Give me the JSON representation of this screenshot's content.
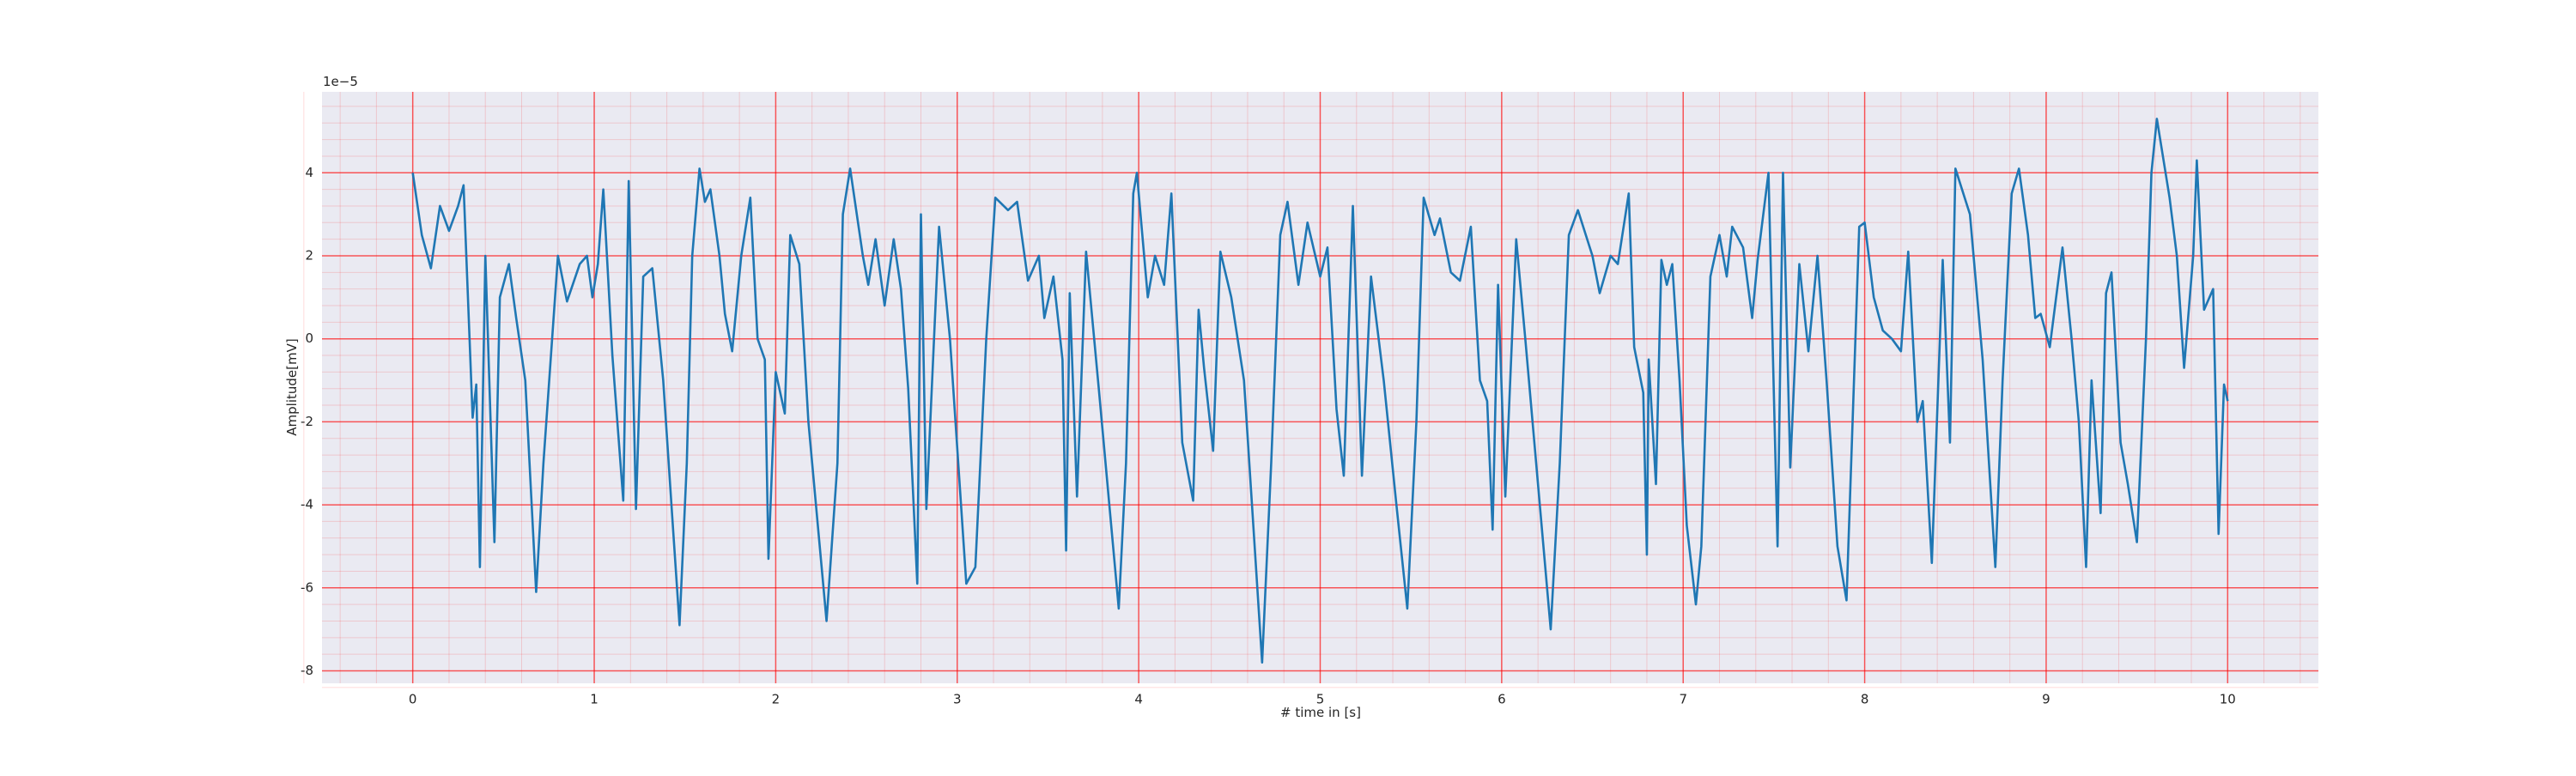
{
  "chart_data": {
    "type": "line",
    "x_label": "# time in [s]",
    "y_label": "Amplitude[mV]",
    "y_offset_text": "1e−5",
    "color": "#1f77b4",
    "background": "#eaeaf2",
    "grid": true,
    "grid_color": "#ff0000",
    "minor_grid": true,
    "xlim": [
      -0.5,
      10.5
    ],
    "xticks": [
      0,
      1,
      2,
      3,
      4,
      5,
      6,
      7,
      8,
      9,
      10
    ],
    "ylim": [
      -8.3,
      5.95
    ],
    "yticks": [
      -8,
      -6,
      -4,
      -2,
      0,
      2,
      4
    ],
    "x": [
      0,
      0.05,
      0.1,
      0.15,
      0.2,
      0.25,
      0.28,
      0.33,
      0.35,
      0.37,
      0.4,
      0.45,
      0.48,
      0.53,
      0.57,
      0.62,
      0.68,
      0.72,
      0.8,
      0.85,
      0.92,
      0.96,
      0.99,
      1.02,
      1.05,
      1.1,
      1.16,
      1.19,
      1.23,
      1.27,
      1.32,
      1.38,
      1.43,
      1.47,
      1.51,
      1.54,
      1.58,
      1.61,
      1.64,
      1.69,
      1.72,
      1.76,
      1.81,
      1.86,
      1.9,
      1.94,
      1.96,
      2.0,
      2.05,
      2.08,
      2.13,
      2.18,
      2.28,
      2.34,
      2.37,
      2.41,
      2.48,
      2.51,
      2.55,
      2.6,
      2.65,
      2.69,
      2.73,
      2.78,
      2.8,
      2.83,
      2.9,
      2.96,
      3.05,
      3.1,
      3.16,
      3.21,
      3.28,
      3.33,
      3.39,
      3.45,
      3.48,
      3.53,
      3.58,
      3.6,
      3.62,
      3.66,
      3.71,
      3.78,
      3.89,
      3.93,
      3.97,
      3.99,
      4.05,
      4.09,
      4.14,
      4.18,
      4.24,
      4.3,
      4.33,
      4.36,
      4.41,
      4.45,
      4.51,
      4.58,
      4.68,
      4.73,
      4.78,
      4.82,
      4.88,
      4.93,
      5.0,
      5.04,
      5.09,
      5.13,
      5.18,
      5.23,
      5.28,
      5.35,
      5.42,
      5.48,
      5.53,
      5.57,
      5.63,
      5.66,
      5.72,
      5.77,
      5.83,
      5.88,
      5.92,
      5.95,
      5.98,
      6.02,
      6.08,
      6.13,
      6.27,
      6.32,
      6.37,
      6.42,
      6.5,
      6.54,
      6.6,
      6.64,
      6.7,
      6.73,
      6.78,
      6.8,
      6.81,
      6.85,
      6.88,
      6.91,
      6.94,
      6.98,
      7.02,
      7.07,
      7.1,
      7.15,
      7.2,
      7.24,
      7.27,
      7.33,
      7.38,
      7.41,
      7.47,
      7.52,
      7.55,
      7.59,
      7.64,
      7.69,
      7.74,
      7.79,
      7.85,
      7.9,
      7.97,
      8.0,
      8.05,
      8.1,
      8.15,
      8.2,
      8.24,
      8.29,
      8.32,
      8.37,
      8.43,
      8.47,
      8.5,
      8.58,
      8.65,
      8.72,
      8.76,
      8.81,
      8.85,
      8.9,
      8.94,
      8.97,
      9.02,
      9.09,
      9.14,
      9.18,
      9.22,
      9.25,
      9.3,
      9.33,
      9.36,
      9.41,
      9.45,
      9.5,
      9.55,
      9.58,
      9.61,
      9.68,
      9.72,
      9.76,
      9.81,
      9.83,
      9.87,
      9.92,
      9.95,
      9.98,
      10.0
    ],
    "values": [
      4.0,
      2.5,
      1.7,
      3.2,
      2.6,
      3.2,
      3.7,
      -1.9,
      -1.1,
      -5.5,
      2.0,
      -4.9,
      1.0,
      1.8,
      0.5,
      -1.0,
      -6.1,
      -3.0,
      2.0,
      0.9,
      1.8,
      2.0,
      1.0,
      1.8,
      3.6,
      -0.4,
      -3.9,
      3.8,
      -4.1,
      1.5,
      1.7,
      -1.0,
      -4.3,
      -6.9,
      -3.0,
      2.0,
      4.1,
      3.3,
      3.6,
      2.0,
      0.6,
      -0.3,
      2.0,
      3.4,
      0.0,
      -0.5,
      -5.3,
      -0.8,
      -1.8,
      2.5,
      1.8,
      -2.0,
      -6.8,
      -3.0,
      3.0,
      4.1,
      2.0,
      1.3,
      2.4,
      0.8,
      2.4,
      1.2,
      -1.2,
      -5.9,
      3.0,
      -4.1,
      2.7,
      0.0,
      -5.9,
      -5.5,
      0.0,
      3.4,
      3.1,
      3.3,
      1.4,
      2.0,
      0.5,
      1.5,
      -0.5,
      -5.1,
      1.1,
      -3.8,
      2.1,
      -1.2,
      -6.5,
      -3.0,
      3.5,
      4.0,
      1.0,
      2.0,
      1.3,
      3.5,
      -2.5,
      -3.9,
      0.7,
      -0.7,
      -2.7,
      2.1,
      1.0,
      -1.0,
      -7.8,
      -3.0,
      2.5,
      3.3,
      1.3,
      2.8,
      1.5,
      2.2,
      -1.7,
      -3.3,
      3.2,
      -3.3,
      1.5,
      -1.0,
      -4.0,
      -6.5,
      -2.0,
      3.4,
      2.5,
      2.9,
      1.6,
      1.4,
      2.7,
      -1.0,
      -1.5,
      -4.6,
      1.3,
      -3.8,
      2.4,
      0.0,
      -7.0,
      -3.0,
      2.5,
      3.1,
      2.0,
      1.1,
      2.0,
      1.8,
      3.5,
      -0.2,
      -1.3,
      -5.2,
      -0.5,
      -3.5,
      1.9,
      1.3,
      1.8,
      -1.0,
      -4.5,
      -6.4,
      -5.0,
      1.5,
      2.5,
      1.5,
      2.7,
      2.2,
      0.5,
      1.9,
      4.0,
      -5.0,
      4.0,
      -3.1,
      1.8,
      -0.3,
      2.0,
      -1.0,
      -5.0,
      -6.3,
      2.7,
      2.8,
      1.0,
      0.2,
      0.0,
      -0.3,
      2.1,
      -2.0,
      -1.5,
      -5.4,
      1.9,
      -2.5,
      4.1,
      3.0,
      -0.5,
      -5.5,
      -1.0,
      3.5,
      4.1,
      2.5,
      0.5,
      0.6,
      -0.2,
      2.2,
      0.0,
      -2.0,
      -5.5,
      -1.0,
      -4.2,
      1.1,
      1.6,
      -2.5,
      -3.5,
      -4.9,
      0.0,
      4.0,
      5.3,
      3.4,
      2.0,
      -0.7,
      2.0,
      4.3,
      0.7,
      1.2,
      -4.7,
      -1.1,
      -1.5
    ]
  }
}
